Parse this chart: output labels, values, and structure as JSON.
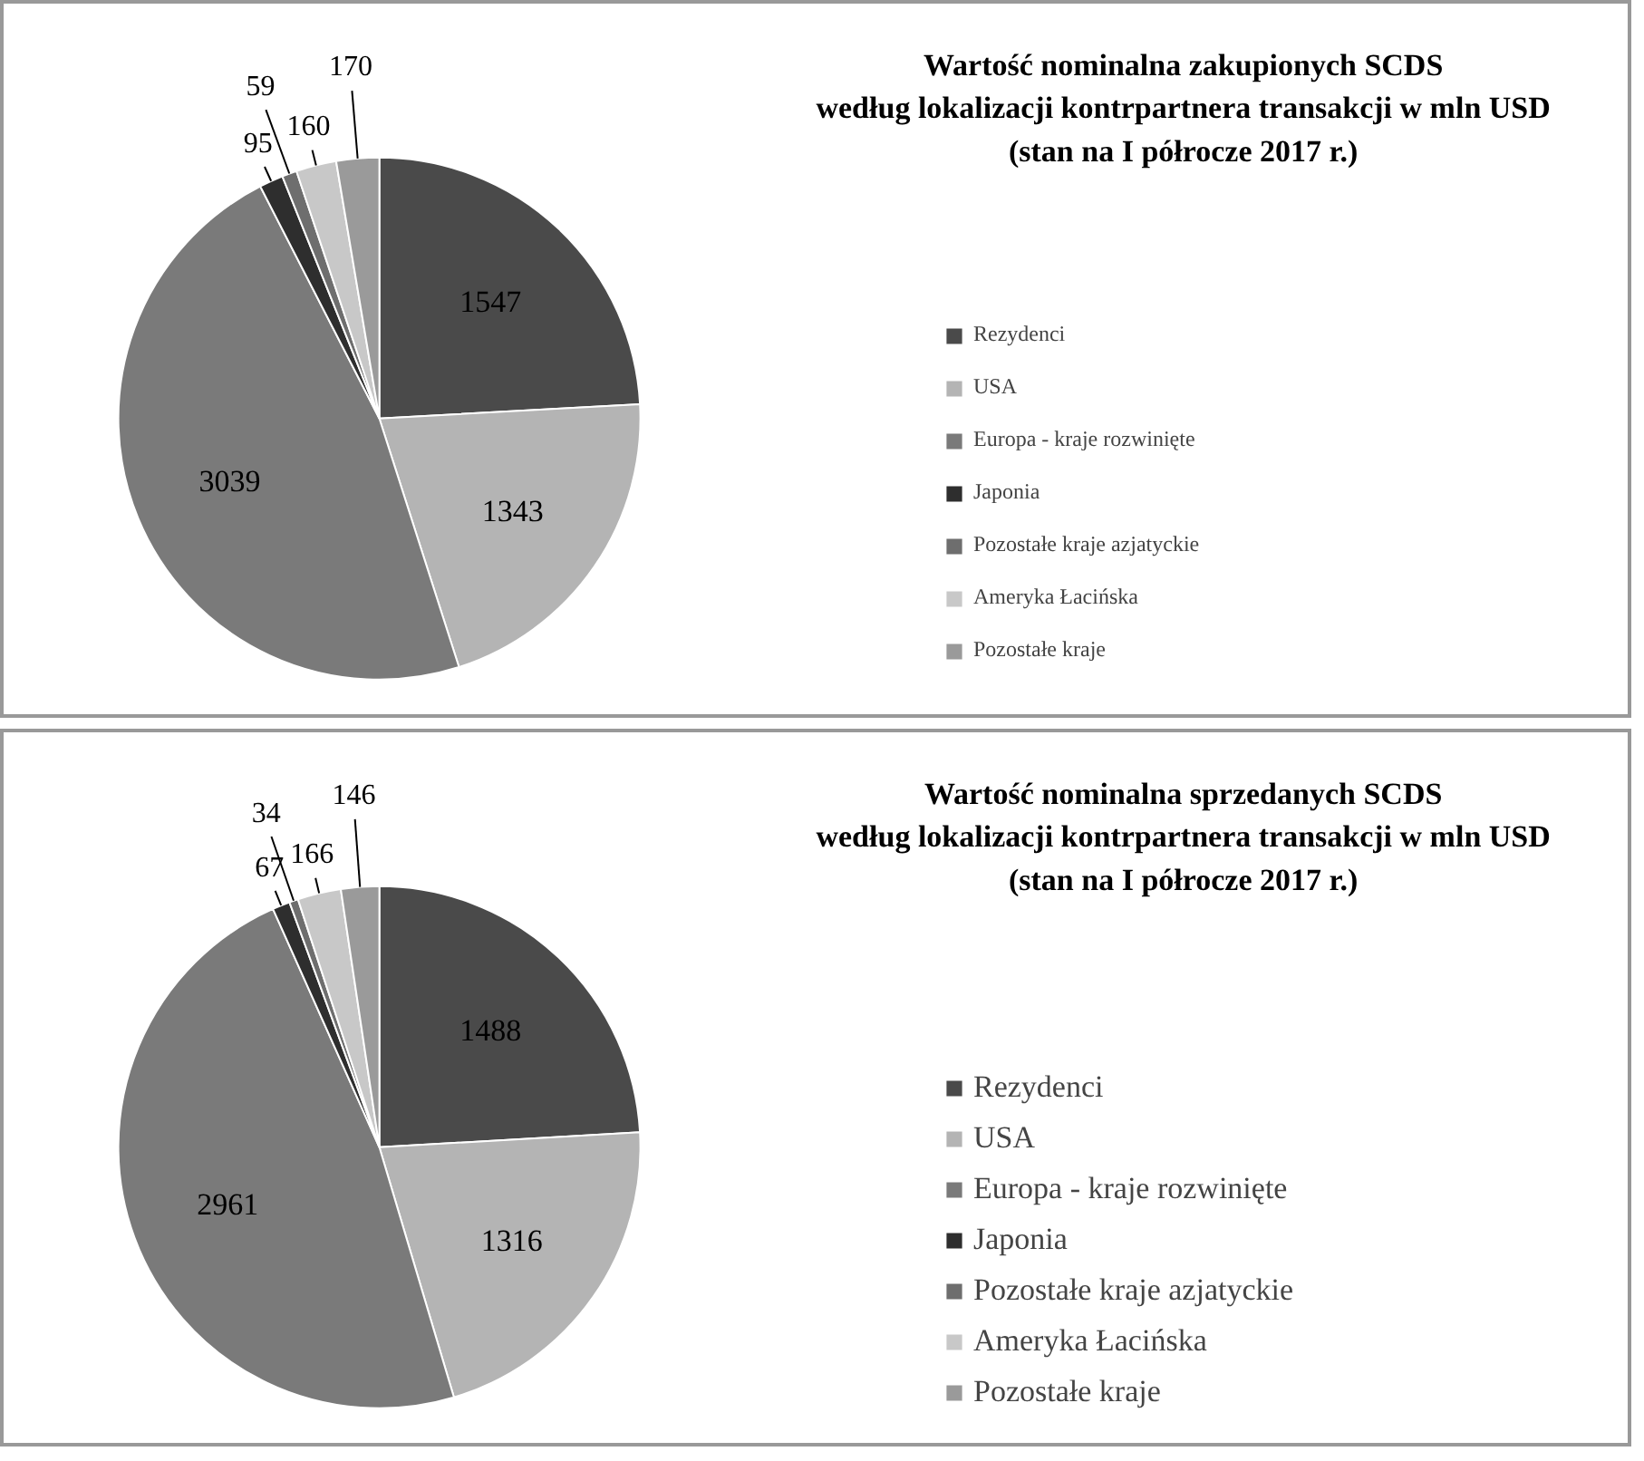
{
  "chart_data": [
    {
      "type": "pie",
      "title": "Wartość nominalna zakupionych SCDS\nwedług lokalizacji kontrpartnera transakcji w mln USD\n(stan na I półrocze 2017 r.)",
      "categories": [
        "Rezydenci",
        "USA",
        "Europa - kraje rozwinięte",
        "Japonia",
        "Pozostałe kraje azjatyckie",
        "Ameryka Łacińska",
        "Pozostałe kraje"
      ],
      "values": [
        1547,
        1343,
        3039,
        95,
        59,
        160,
        170
      ],
      "colors": [
        "#4a4a4a",
        "#b4b4b4",
        "#7a7a7a",
        "#2e2e2e",
        "#6e6e6e",
        "#c8c8c8",
        "#9a9a9a"
      ],
      "data_labels": true,
      "legend": "right"
    },
    {
      "type": "pie",
      "title": "Wartość nominalna sprzedanych SCDS\nwedług lokalizacji kontrpartnera transakcji w mln USD\n(stan na I półrocze 2017 r.)",
      "categories": [
        "Rezydenci",
        "USA",
        "Europa - kraje rozwinięte",
        "Japonia",
        "Pozostałe kraje azjatyckie",
        "Ameryka Łacińska",
        "Pozostałe kraje"
      ],
      "values": [
        1488,
        1316,
        2961,
        67,
        34,
        166,
        146
      ],
      "colors": [
        "#4a4a4a",
        "#b4b4b4",
        "#7a7a7a",
        "#2e2e2e",
        "#6e6e6e",
        "#c8c8c8",
        "#9a9a9a"
      ],
      "data_labels": true,
      "legend": "right"
    }
  ]
}
